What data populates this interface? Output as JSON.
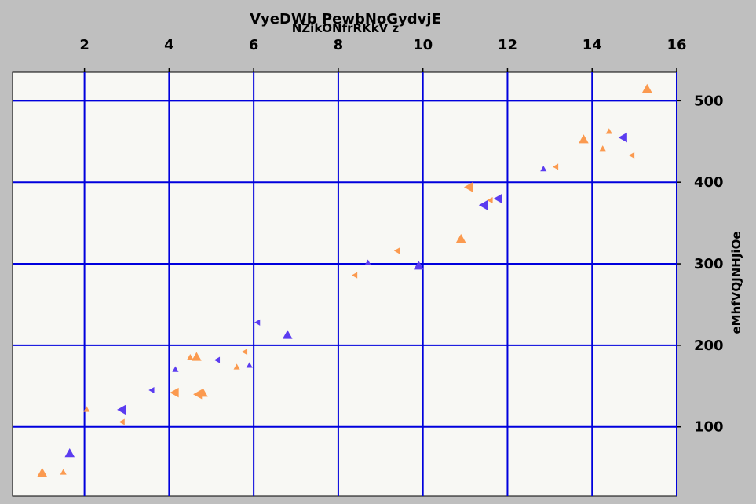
{
  "chart_data": {
    "type": "scatter",
    "title": "VyeDWb PewbNoGydvjE",
    "subtitle": "NZikONfrRKkV z",
    "xlabel": "",
    "ylabel": "eMhfVQJNHJiOe",
    "xlim": [
      0.3,
      16
    ],
    "ylim": [
      15,
      535
    ],
    "x_ticks": [
      2,
      4,
      6,
      8,
      10,
      12,
      14,
      16
    ],
    "y_ticks": [
      100,
      200,
      300,
      400,
      500
    ],
    "x_axis_position": "top",
    "y_axis_position": "right",
    "grid": true,
    "colors": {
      "background": "#bfbfbf",
      "plot_bg": "#f8f8f4",
      "grid": "#0000dd",
      "orange": "#fb9a4f",
      "purple": "#5b3cf0"
    },
    "series": [
      {
        "color": "#fb9a4f",
        "points": [
          {
            "x": 1.0,
            "y": 43,
            "marker": "up",
            "size": "large"
          },
          {
            "x": 1.5,
            "y": 44,
            "marker": "up",
            "size": "small"
          },
          {
            "x": 2.05,
            "y": 121,
            "marker": "up",
            "size": "small"
          },
          {
            "x": 2.9,
            "y": 106,
            "marker": "left",
            "size": "small"
          },
          {
            "x": 4.15,
            "y": 142,
            "marker": "left",
            "size": "large"
          },
          {
            "x": 4.5,
            "y": 185,
            "marker": "up",
            "size": "small"
          },
          {
            "x": 4.65,
            "y": 185,
            "marker": "up",
            "size": "large"
          },
          {
            "x": 4.7,
            "y": 140,
            "marker": "left",
            "size": "large"
          },
          {
            "x": 4.8,
            "y": 141,
            "marker": "up",
            "size": "large"
          },
          {
            "x": 5.6,
            "y": 173,
            "marker": "up",
            "size": "small"
          },
          {
            "x": 5.8,
            "y": 192,
            "marker": "left",
            "size": "small"
          },
          {
            "x": 8.4,
            "y": 286,
            "marker": "left",
            "size": "small"
          },
          {
            "x": 9.4,
            "y": 316,
            "marker": "left",
            "size": "small"
          },
          {
            "x": 10.9,
            "y": 330,
            "marker": "up",
            "size": "large"
          },
          {
            "x": 11.1,
            "y": 394,
            "marker": "left",
            "size": "large"
          },
          {
            "x": 11.6,
            "y": 378,
            "marker": "left",
            "size": "small"
          },
          {
            "x": 13.15,
            "y": 419,
            "marker": "left",
            "size": "small"
          },
          {
            "x": 13.8,
            "y": 452,
            "marker": "up",
            "size": "large"
          },
          {
            "x": 14.25,
            "y": 441,
            "marker": "up",
            "size": "small"
          },
          {
            "x": 14.4,
            "y": 462,
            "marker": "up",
            "size": "small"
          },
          {
            "x": 14.95,
            "y": 433,
            "marker": "left",
            "size": "small"
          },
          {
            "x": 15.3,
            "y": 514,
            "marker": "up",
            "size": "large"
          }
        ]
      },
      {
        "color": "#5b3cf0",
        "points": [
          {
            "x": 1.65,
            "y": 67,
            "marker": "up",
            "size": "large"
          },
          {
            "x": 2.9,
            "y": 121,
            "marker": "left",
            "size": "large"
          },
          {
            "x": 3.6,
            "y": 145,
            "marker": "left",
            "size": "small"
          },
          {
            "x": 4.15,
            "y": 170,
            "marker": "up",
            "size": "small"
          },
          {
            "x": 5.15,
            "y": 182,
            "marker": "left",
            "size": "small"
          },
          {
            "x": 5.9,
            "y": 175,
            "marker": "up",
            "size": "small"
          },
          {
            "x": 6.1,
            "y": 228,
            "marker": "left",
            "size": "small"
          },
          {
            "x": 6.8,
            "y": 212,
            "marker": "up",
            "size": "large"
          },
          {
            "x": 8.7,
            "y": 301,
            "marker": "up",
            "size": "small"
          },
          {
            "x": 9.9,
            "y": 297,
            "marker": "up",
            "size": "large"
          },
          {
            "x": 11.45,
            "y": 372,
            "marker": "left",
            "size": "large"
          },
          {
            "x": 11.8,
            "y": 380,
            "marker": "left",
            "size": "large"
          },
          {
            "x": 12.85,
            "y": 416,
            "marker": "up",
            "size": "small"
          },
          {
            "x": 14.75,
            "y": 455,
            "marker": "left",
            "size": "large"
          }
        ]
      }
    ]
  }
}
